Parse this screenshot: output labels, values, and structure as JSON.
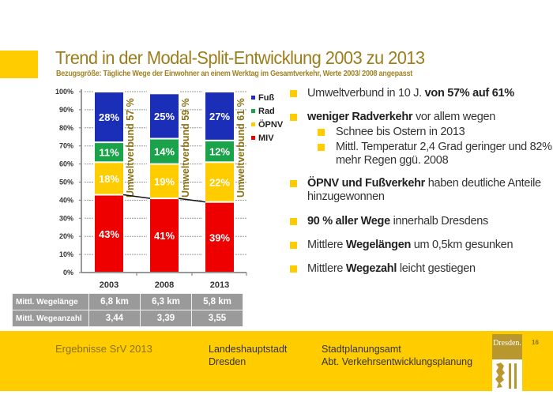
{
  "header": {
    "title": "Trend in der Modal-Split-Entwicklung 2003 zu 2013",
    "subtitle": "Bezugsgröße: Tägliche Wege der Einwohner  an einem Werktag im Gesamtverkehr, Werte 2003/ 2008 angepasst"
  },
  "chart_data": {
    "type": "bar",
    "stacked": true,
    "title": "",
    "xlabel": "",
    "ylabel": "",
    "ylim": [
      0,
      100
    ],
    "yticks": [
      "0%",
      "10%",
      "20%",
      "30%",
      "40%",
      "50%",
      "60%",
      "70%",
      "80%",
      "90%",
      "100%"
    ],
    "categories": [
      "2003",
      "2008",
      "2013"
    ],
    "series": [
      {
        "name": "MIV",
        "color": "#ee0000",
        "values": [
          43,
          41,
          39
        ],
        "labels": [
          "43%",
          "41%",
          "39%"
        ]
      },
      {
        "name": "ÖPNV",
        "color": "#ffcc00",
        "values": [
          18,
          19,
          22
        ],
        "labels": [
          "18%",
          "19%",
          "22%"
        ]
      },
      {
        "name": "Rad",
        "color": "#1aa34a",
        "values": [
          11,
          14,
          12
        ],
        "labels": [
          "11%",
          "14%",
          "12%"
        ]
      },
      {
        "name": "Fuß",
        "color": "#1a2eb8",
        "values": [
          28,
          25,
          27
        ],
        "labels": [
          "28%",
          "25%",
          "27%"
        ]
      }
    ],
    "legend_order": [
      "Fuß",
      "Rad",
      "ÖPNV",
      "MIV"
    ],
    "legend_position": "right",
    "annotations": [
      "Umweltverbund 57 %",
      "Umweltverbund 59 %",
      "Umweltverbund 61 %"
    ],
    "grid": "dashed horizontal"
  },
  "table": {
    "rows": [
      {
        "label": "Mittl. Wegelänge",
        "values": [
          "6,8 km",
          "6,3 km",
          "5,8 km"
        ]
      },
      {
        "label": "Mittl. Wegeanzahl",
        "values": [
          "3,44",
          "3,39",
          "3,55"
        ]
      }
    ]
  },
  "bullets": [
    {
      "parts": [
        {
          "t": "Umweltverbund in 10 J. ",
          "b": false
        },
        {
          "t": "von 57% auf 61%",
          "b": true
        }
      ]
    },
    {
      "parts": [
        {
          "t": "weniger Radverkehr",
          "b": true
        },
        {
          "t": " vor allem wegen",
          "b": false
        }
      ]
    },
    {
      "sub": true,
      "parts": [
        {
          "t": "Schnee bis Ostern in 2013",
          "b": false
        }
      ]
    },
    {
      "sub": true,
      "parts": [
        {
          "t": "Mittl. Temperatur 2,4 Grad geringer und 82% mehr Regen ggü. 2008",
          "b": false
        }
      ]
    },
    {
      "parts": [
        {
          "t": "ÖPNV und Fußverkehr",
          "b": true
        },
        {
          "t": " haben deutliche Anteile hinzugewonnen",
          "b": false
        }
      ]
    },
    {
      "parts": [
        {
          "t": "90 % aller Wege",
          "b": true
        },
        {
          "t": " innerhalb Dresdens",
          "b": false
        }
      ]
    },
    {
      "parts": [
        {
          "t": "Mittlere ",
          "b": false
        },
        {
          "t": "Wegelängen",
          "b": true
        },
        {
          "t": " um 0,5km gesunken",
          "b": false
        }
      ]
    },
    {
      "parts": [
        {
          "t": "Mittlere ",
          "b": false
        },
        {
          "t": "Wegezahl",
          "b": true
        },
        {
          "t": " leicht gestiegen",
          "b": false
        }
      ]
    }
  ],
  "footer": {
    "project": "Ergebnisse SrV 2013",
    "city_line1": "Landeshauptstadt",
    "city_line2": "Dresden",
    "dept_line1": "Stadtplanungsamt",
    "dept_line2": "Abt. Verkehrsentwicklungsplanung",
    "logo_text": "Dresden.",
    "page_number": "16"
  }
}
